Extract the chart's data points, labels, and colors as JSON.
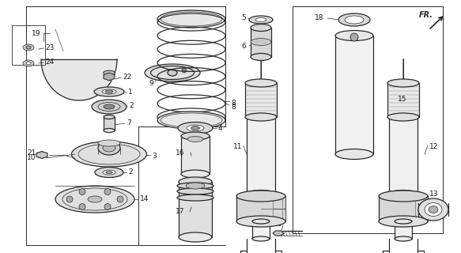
{
  "background_color": "#ffffff",
  "line_color": "#2a2a2a",
  "figsize": [
    5.83,
    3.2
  ],
  "dpi": 100,
  "lw_main": 0.9,
  "lw_thin": 0.5,
  "lw_leader": 0.5,
  "label_fontsize": 6.5
}
